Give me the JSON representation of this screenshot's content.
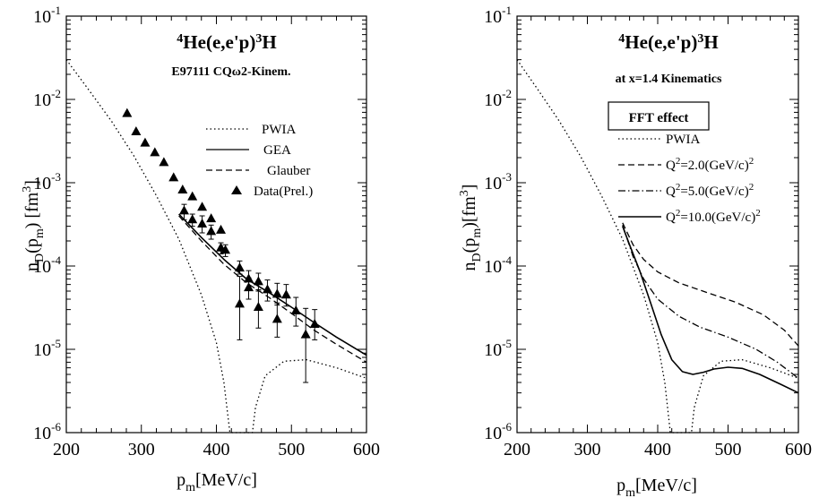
{
  "chart_data": [
    {
      "type": "line",
      "title": {
        "pre": "4",
        "mid": "He(e,e'p)",
        "sup2": "3",
        "post": "H"
      },
      "subtitle": "E97111 CQω2-Kinem.",
      "xlabel": {
        "base": "p",
        "sub": "m",
        "rest": "[MeV/c]"
      },
      "ylabel": {
        "a": "n",
        "sub1": "D",
        "b": "(p",
        "sub2": "m",
        "c": ") [fm",
        "sup": "3",
        "d": "]"
      },
      "xlim": [
        200,
        600
      ],
      "ylim": [
        1e-06,
        0.1
      ],
      "yscale": "log",
      "x_ticks": [
        200,
        300,
        400,
        500,
        600
      ],
      "x_tick_labels": [
        "200",
        "300",
        "400",
        "500",
        "600"
      ],
      "y_ticks": [
        {
          "value": 0.1,
          "base": "10",
          "exp": "-1"
        },
        {
          "value": 0.01,
          "base": "10",
          "exp": "-2"
        },
        {
          "value": 0.001,
          "base": "10",
          "exp": "-3"
        },
        {
          "value": 0.0001,
          "base": "10",
          "exp": "-4"
        },
        {
          "value": 1e-05,
          "base": "10",
          "exp": "-5"
        },
        {
          "value": 1e-06,
          "base": "10",
          "exp": "-6"
        }
      ],
      "legend_position": "right",
      "series": [
        {
          "name": "PWIA",
          "style": "dotted",
          "x": [
            200,
            230,
            260,
            290,
            320,
            350,
            380,
            400,
            410,
            414,
            418,
            448,
            452,
            465,
            490,
            520,
            560,
            600
          ],
          "y": [
            0.03,
            0.013,
            0.0055,
            0.0021,
            0.0007,
            0.00021,
            4.5e-05,
            1.2e-05,
            4e-06,
            2e-06,
            1e-06,
            1e-06,
            2e-06,
            4.8e-06,
            7.2e-06,
            7.5e-06,
            6e-06,
            4.5e-06
          ]
        },
        {
          "name": "GEA",
          "style": "solid",
          "x": [
            350,
            380,
            410,
            440,
            470,
            500,
            530,
            560,
            600
          ],
          "y": [
            0.00042,
            0.00022,
            0.00012,
            7e-05,
            4.8e-05,
            3.2e-05,
            2.1e-05,
            1.4e-05,
            8.5e-06
          ]
        },
        {
          "name": "Glauber",
          "style": "dashed",
          "x": [
            350,
            380,
            410,
            440,
            470,
            500,
            530,
            560,
            600
          ],
          "y": [
            0.0004,
            0.0002,
            0.000105,
            6.3e-05,
            4.2e-05,
            2.7e-05,
            1.7e-05,
            1.15e-05,
            7e-06
          ]
        },
        {
          "name": "Data(Prel.)",
          "style": "markers",
          "points": [
            {
              "x": 281,
              "y": 0.0068
            },
            {
              "x": 293,
              "y": 0.0041
            },
            {
              "x": 305,
              "y": 0.003
            },
            {
              "x": 318,
              "y": 0.0023
            },
            {
              "x": 330,
              "y": 0.00175
            },
            {
              "x": 343,
              "y": 0.00115
            },
            {
              "x": 355,
              "y": 0.00082
            },
            {
              "x": 368,
              "y": 0.00068
            },
            {
              "x": 381,
              "y": 0.00051
            },
            {
              "x": 393,
              "y": 0.00037
            },
            {
              "x": 406,
              "y": 0.00027
            },
            {
              "x": 357,
              "y": 0.00046,
              "err": [
                0.00036,
                0.00055
              ]
            },
            {
              "x": 368,
              "y": 0.00036,
              "err": [
                0.0003,
                0.00042
              ]
            },
            {
              "x": 381,
              "y": 0.00032,
              "err": [
                0.00025,
                0.0004
              ]
            },
            {
              "x": 393,
              "y": 0.00026,
              "err": [
                0.00021,
                0.00031
              ]
            },
            {
              "x": 406,
              "y": 0.000165,
              "err": [
                0.00014,
                0.00019
              ]
            },
            {
              "x": 412,
              "y": 0.000155,
              "err": [
                0.00013,
                0.00018
              ]
            },
            {
              "x": 431,
              "y": 9.5e-05,
              "err": [
                8e-05,
                0.000115
              ]
            },
            {
              "x": 431,
              "y": 3.5e-05,
              "err": [
                1.3e-05,
                7.5e-05
              ]
            },
            {
              "x": 443,
              "y": 7e-05,
              "err": [
                5.5e-05,
                8.8e-05
              ]
            },
            {
              "x": 443,
              "y": 5.5e-05,
              "err": [
                4e-05,
                7.2e-05
              ]
            },
            {
              "x": 456,
              "y": 6.5e-05,
              "err": [
                5e-05,
                8.2e-05
              ]
            },
            {
              "x": 456,
              "y": 3.2e-05,
              "err": [
                1.8e-05,
                5.2e-05
              ]
            },
            {
              "x": 468,
              "y": 5.2e-05,
              "err": [
                3.8e-05,
                6.8e-05
              ]
            },
            {
              "x": 481,
              "y": 4.6e-05,
              "err": [
                3.4e-05,
                6.2e-05
              ]
            },
            {
              "x": 481,
              "y": 2.3e-05,
              "err": [
                1.4e-05,
                3.6e-05
              ]
            },
            {
              "x": 493,
              "y": 4.5e-05,
              "err": [
                3.3e-05,
                6e-05
              ]
            },
            {
              "x": 506,
              "y": 2.9e-05,
              "err": [
                1.9e-05,
                4.2e-05
              ]
            },
            {
              "x": 519,
              "y": 1.5e-05,
              "err": [
                4e-06,
                3.1e-05
              ]
            },
            {
              "x": 531,
              "y": 2e-05,
              "err": [
                1.3e-05,
                3e-05
              ]
            }
          ]
        }
      ]
    },
    {
      "type": "line",
      "title": {
        "pre": "4",
        "mid": "He(e,e'p)",
        "sup2": "3",
        "post": "H"
      },
      "subtitle": "at x=1.4 Kinematics",
      "boxed_label": "FFT effect",
      "xlabel": {
        "base": "p",
        "sub": "m",
        "rest": "[MeV/c]"
      },
      "ylabel": {
        "a": "n",
        "sub1": "D",
        "b": "(p",
        "sub2": "m",
        "c": ")[fm",
        "sup": "3",
        "d": "]"
      },
      "xlim": [
        200,
        600
      ],
      "ylim": [
        1e-06,
        0.1
      ],
      "yscale": "log",
      "x_ticks": [
        200,
        300,
        400,
        500,
        600
      ],
      "x_tick_labels": [
        "200",
        "300",
        "400",
        "500",
        "600"
      ],
      "y_ticks": [
        {
          "value": 0.1,
          "base": "10",
          "exp": "-1"
        },
        {
          "value": 0.01,
          "base": "10",
          "exp": "-2"
        },
        {
          "value": 0.001,
          "base": "10",
          "exp": "-3"
        },
        {
          "value": 0.0001,
          "base": "10",
          "exp": "-4"
        },
        {
          "value": 1e-05,
          "base": "10",
          "exp": "-5"
        },
        {
          "value": 1e-06,
          "base": "10",
          "exp": "-6"
        }
      ],
      "legend_position": "right",
      "series": [
        {
          "name": "PWIA",
          "style": "dotted",
          "label": {
            "plain": "PWIA"
          },
          "x": [
            200,
            230,
            260,
            290,
            320,
            350,
            380,
            400,
            410,
            414,
            418,
            448,
            452,
            465,
            490,
            520,
            560,
            600
          ],
          "y": [
            0.03,
            0.013,
            0.0055,
            0.0021,
            0.0007,
            0.00021,
            4.5e-05,
            1.2e-05,
            4e-06,
            2e-06,
            1e-06,
            1e-06,
            2e-06,
            4.8e-06,
            7.2e-06,
            7.5e-06,
            6e-06,
            4.5e-06
          ]
        },
        {
          "name": "Q2=2.0(GeV/c)2",
          "style": "dashed",
          "label": {
            "q": "Q",
            "sup1": "2",
            "mid": "=2.0(GeV/c)",
            "sup2": "2"
          },
          "x": [
            350,
            365,
            380,
            400,
            430,
            470,
            510,
            550,
            580,
            600
          ],
          "y": [
            0.00033,
            0.00018,
            0.00012,
            8.5e-05,
            6.3e-05,
            4.8e-05,
            3.7e-05,
            2.6e-05,
            1.7e-05,
            1.1e-05
          ]
        },
        {
          "name": "Q2=5.0(GeV/c)2",
          "style": "dashdot",
          "label": {
            "q": "Q",
            "sup1": "2",
            "mid": "=5.0(GeV/c)",
            "sup2": "2"
          },
          "x": [
            350,
            365,
            380,
            400,
            430,
            460,
            500,
            540,
            570,
            600
          ],
          "y": [
            0.00031,
            0.00013,
            7e-05,
            4e-05,
            2.5e-05,
            1.85e-05,
            1.4e-05,
            1e-05,
            7e-06,
            4.5e-06
          ]
        },
        {
          "name": "Q2=10.0(GeV/c)2",
          "style": "solid",
          "label": {
            "q": "Q",
            "sup1": "2",
            "mid": "=10.0(GeV/c)",
            "sup2": "2"
          },
          "x": [
            350,
            360,
            375,
            390,
            405,
            420,
            435,
            450,
            465,
            480,
            500,
            520,
            545,
            575,
            600
          ],
          "y": [
            0.0003,
            0.00018,
            8.5e-05,
            3.6e-05,
            1.5e-05,
            7.5e-06,
            5.4e-06,
            5e-06,
            5.3e-06,
            5.8e-06,
            6.1e-06,
            5.9e-06,
            5e-06,
            3.8e-06,
            3e-06
          ]
        }
      ]
    }
  ]
}
